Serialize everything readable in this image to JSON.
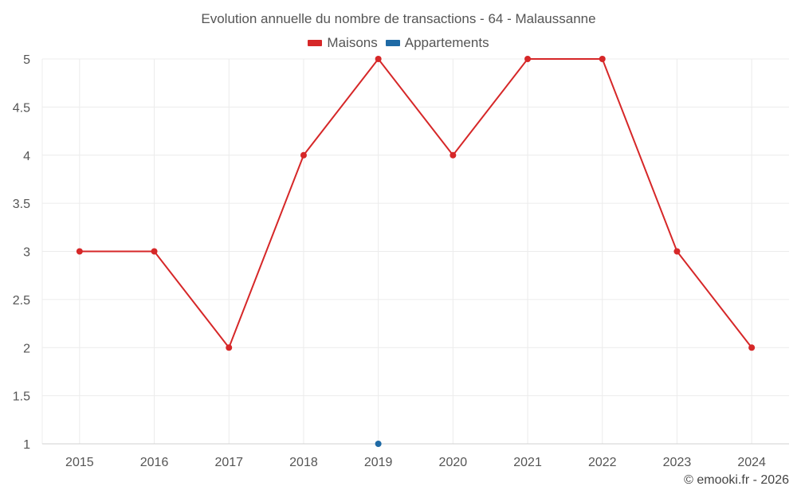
{
  "chart_data": {
    "type": "line",
    "title": "Evolution annuelle du nombre de transactions - 64 - Malaussanne",
    "categories": [
      "2015",
      "2016",
      "2017",
      "2018",
      "2019",
      "2020",
      "2021",
      "2022",
      "2023",
      "2024"
    ],
    "series": [
      {
        "name": "Maisons",
        "color": "#d62728",
        "values": [
          3,
          3,
          2,
          4,
          5,
          4,
          5,
          5,
          3,
          2
        ]
      },
      {
        "name": "Appartements",
        "color": "#1f6aa5",
        "values": [
          null,
          null,
          null,
          null,
          1,
          null,
          null,
          null,
          null,
          null
        ]
      }
    ],
    "y_ticks": [
      "1",
      "1.5",
      "2",
      "2.5",
      "3",
      "3.5",
      "4",
      "4.5",
      "5"
    ],
    "ylim": [
      1,
      5
    ],
    "grid": true,
    "legend_position": "top-center"
  },
  "credit": "© emooki.fr - 2026"
}
